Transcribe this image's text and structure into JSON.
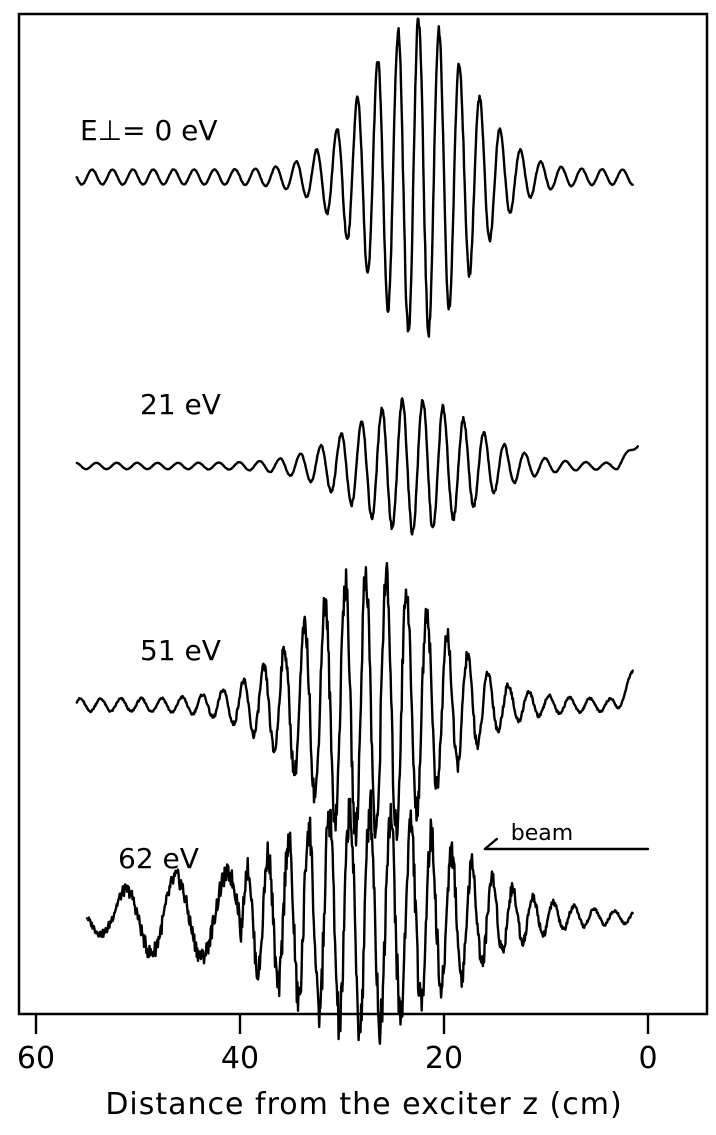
{
  "chart_data": {
    "type": "line",
    "xlabel": "Distance   from   the   exciter  z  (cm)",
    "xlim": [
      65,
      -5
    ],
    "x_reversed": true,
    "xticks": [
      60,
      40,
      20,
      0
    ],
    "xtick_labels": [
      "60",
      "40",
      "20",
      "0"
    ],
    "annotation": {
      "text": "beam",
      "direction": "toward increasing z",
      "x_from": 0,
      "x_to": 16
    },
    "series": [
      {
        "name": "E⊥= 0 eV",
        "x_start": 56,
        "x_end": 1.5,
        "envelope_center": 22.5,
        "envelope_width": 7,
        "amplitude": 1.0,
        "wavelength_cm": 2.0,
        "noise": 0.04,
        "baseline_tail": 0
      },
      {
        "name": "21 eV",
        "x_start": 56,
        "x_end": 1.0,
        "envelope_center": 23,
        "envelope_width": 8,
        "amplitude": 0.55,
        "wavelength_cm": 2.0,
        "noise": 0.05,
        "baseline_tail": 0.06
      },
      {
        "name": "51 eV",
        "x_start": 56,
        "x_end": 1.5,
        "envelope_center": 27,
        "envelope_width": 9,
        "amplitude": 0.9,
        "wavelength_cm": 2.0,
        "noise": 0.14,
        "baseline_tail": 0.05
      },
      {
        "name": "62 eV",
        "x_start": 55,
        "x_end": 1.5,
        "envelope_center": 28,
        "envelope_width": 12,
        "amplitude": 0.95,
        "wavelength_cm": 2.0,
        "noise": 0.22,
        "baseline_tail": 0
      }
    ]
  }
}
